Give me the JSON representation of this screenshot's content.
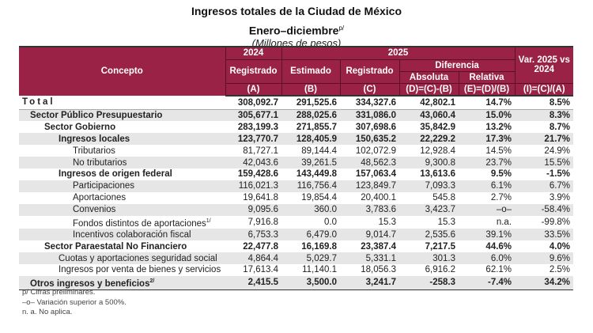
{
  "header": {
    "title": "Ingresos totales de la Ciudad de México",
    "period": "Enero–diciembre",
    "period_sup": "p/",
    "units": "(Millones de pesos)"
  },
  "columns": {
    "concepto": "Concepto",
    "y2024": "2024",
    "y2025": "2025",
    "registrado_2024": "Registrado",
    "estimado": "Estimado",
    "registrado_2025": "Registrado",
    "diferencia": "Diferencia",
    "absoluta": "Absoluta",
    "relativa": "Relativa",
    "var": "Var. 2025 vs 2024",
    "a": "(A)",
    "b": "(B)",
    "c": "(C)",
    "d": "(D)=(C)-(B)",
    "e": "(E)=(D)/(B)",
    "i": "(I)=(C)/(A)"
  },
  "total": {
    "label": "Total",
    "values": [
      "308,092.7",
      "291,525.6",
      "334,327.6",
      "42,802.1",
      "14.7%",
      "8.5%"
    ]
  },
  "rows": [
    {
      "label": "Sector Público Presupuestario",
      "sup": "",
      "level": 1,
      "bold": true,
      "values": [
        "305,677.1",
        "288,025.6",
        "331,086.0",
        "43,060.4",
        "15.0%",
        "8.3%"
      ]
    },
    {
      "label": "Sector Gobierno",
      "sup": "",
      "level": 2,
      "bold": true,
      "values": [
        "283,199.3",
        "271,855.7",
        "307,698.6",
        "35,842.9",
        "13.2%",
        "8.7%"
      ]
    },
    {
      "label": "Ingresos locales",
      "sup": "",
      "level": 3,
      "bold": true,
      "values": [
        "123,770.7",
        "128,405.9",
        "150,635.2",
        "22,229.2",
        "17.3%",
        "21.7%"
      ]
    },
    {
      "label": "Tributarios",
      "sup": "",
      "level": 4,
      "bold": false,
      "values": [
        "81,727.1",
        "89,144.4",
        "102,072.9",
        "12,928.4",
        "14.5%",
        "24.9%"
      ]
    },
    {
      "label": "No tributarios",
      "sup": "",
      "level": 4,
      "bold": false,
      "values": [
        "42,043.6",
        "39,261.5",
        "48,562.3",
        "9,300.8",
        "23.7%",
        "15.5%"
      ]
    },
    {
      "label": "Ingresos de origen federal",
      "sup": "",
      "level": 3,
      "bold": true,
      "values": [
        "159,428.6",
        "143,449.8",
        "157,063.4",
        "13,613.6",
        "9.5%",
        "-1.5%"
      ]
    },
    {
      "label": "Participaciones",
      "sup": "",
      "level": 4,
      "bold": false,
      "values": [
        "116,021.3",
        "116,756.4",
        "123,849.7",
        "7,093.3",
        "6.1%",
        "6.7%"
      ]
    },
    {
      "label": "Aportaciones",
      "sup": "",
      "level": 4,
      "bold": false,
      "values": [
        "19,641.8",
        "19,854.4",
        "20,400.1",
        "545.8",
        "2.7%",
        "3.9%"
      ]
    },
    {
      "label": "Convenios",
      "sup": "",
      "level": 4,
      "bold": false,
      "values": [
        "9,095.6",
        "360.0",
        "3,783.6",
        "3,423.7",
        "–o–",
        "-58.4%"
      ]
    },
    {
      "label": "Fondos distintos de aportaciones",
      "sup": "1/",
      "level": 4,
      "bold": false,
      "values": [
        "7,916.8",
        "0.0",
        "15.3",
        "15.3",
        "n.a.",
        "-99.8%"
      ]
    },
    {
      "label": "Incentivos colaboración fiscal",
      "sup": "",
      "level": 4,
      "bold": false,
      "values": [
        "6,753.3",
        "6,479.0",
        "9,014.7",
        "2,535.6",
        "39.1%",
        "33.5%"
      ]
    },
    {
      "label": "Sector Paraestatal No Financiero",
      "sup": "",
      "level": 2,
      "bold": true,
      "values": [
        "22,477.8",
        "16,169.8",
        "23,387.4",
        "7,217.5",
        "44.6%",
        "4.0%"
      ]
    },
    {
      "label": "Cuotas y aportaciones seguridad social",
      "sup": "",
      "level": 3,
      "bold": false,
      "values": [
        "4,864.4",
        "5,029.7",
        "5,331.1",
        "301.3",
        "6.0%",
        "9.6%"
      ]
    },
    {
      "label": "Ingresos por venta de bienes y servicios",
      "sup": "",
      "level": 3,
      "bold": false,
      "values": [
        "17,613.4",
        "11,140.1",
        "18,056.3",
        "6,916.2",
        "62.1%",
        "2.5%"
      ]
    },
    {
      "label": "Otros ingresos y beneficios",
      "sup": "2/",
      "level": 1,
      "bold": true,
      "values": [
        "2,415.5",
        "3,500.0",
        "3,241.7",
        "-258.3",
        "-7.4%",
        "34.2%"
      ]
    }
  ],
  "notes": [
    "p/ Cifras preliminares.",
    "–o– Variación superior a 500%.",
    "n. a. No aplica."
  ],
  "colors": {
    "header_bg": "#9b2247",
    "shade": "#e6e6e6"
  }
}
